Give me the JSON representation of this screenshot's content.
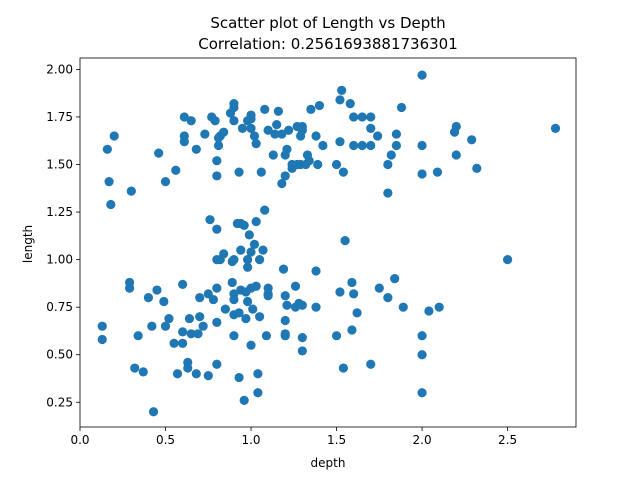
{
  "chart_data": {
    "type": "scatter",
    "title": "Scatter plot of Length vs Depth",
    "subtitle": "Correlation: 0.2561693881736301",
    "xlabel": "depth",
    "ylabel": "length",
    "xlim": [
      0.0,
      2.9
    ],
    "ylim": [
      0.12,
      2.06
    ],
    "xticks": [
      0.0,
      0.5,
      1.0,
      1.5,
      2.0,
      2.5
    ],
    "xtick_labels": [
      "0.0",
      "0.5",
      "1.0",
      "1.5",
      "2.0",
      "2.5"
    ],
    "yticks": [
      0.25,
      0.5,
      0.75,
      1.0,
      1.25,
      1.5,
      1.75,
      2.0
    ],
    "ytick_labels": [
      "0.25",
      "0.50",
      "0.75",
      "1.00",
      "1.25",
      "1.50",
      "1.75",
      "2.00"
    ],
    "grid": false,
    "marker_color": "#1f77b4",
    "points": [
      [
        0.13,
        0.65
      ],
      [
        0.13,
        0.58
      ],
      [
        0.16,
        1.58
      ],
      [
        0.17,
        1.41
      ],
      [
        0.18,
        1.29
      ],
      [
        0.2,
        1.65
      ],
      [
        0.29,
        0.88
      ],
      [
        0.29,
        0.85
      ],
      [
        0.3,
        1.36
      ],
      [
        0.32,
        0.43
      ],
      [
        0.34,
        0.6
      ],
      [
        0.37,
        0.41
      ],
      [
        0.4,
        0.8
      ],
      [
        0.42,
        0.65
      ],
      [
        0.43,
        0.2
      ],
      [
        0.45,
        0.84
      ],
      [
        0.46,
        1.56
      ],
      [
        0.49,
        0.78
      ],
      [
        0.5,
        1.41
      ],
      [
        0.5,
        0.65
      ],
      [
        0.52,
        0.69
      ],
      [
        0.55,
        0.56
      ],
      [
        0.56,
        1.47
      ],
      [
        0.57,
        0.4
      ],
      [
        0.6,
        0.87
      ],
      [
        0.6,
        0.62
      ],
      [
        0.6,
        0.56
      ],
      [
        0.61,
        1.75
      ],
      [
        0.61,
        1.65
      ],
      [
        0.61,
        1.62
      ],
      [
        0.63,
        0.46
      ],
      [
        0.63,
        0.43
      ],
      [
        0.64,
        0.69
      ],
      [
        0.65,
        1.73
      ],
      [
        0.65,
        0.61
      ],
      [
        0.68,
        1.58
      ],
      [
        0.68,
        0.4
      ],
      [
        0.69,
        0.61
      ],
      [
        0.7,
        0.7
      ],
      [
        0.7,
        0.8
      ],
      [
        0.72,
        0.65
      ],
      [
        0.73,
        1.66
      ],
      [
        0.75,
        0.39
      ],
      [
        0.75,
        0.82
      ],
      [
        0.76,
        1.21
      ],
      [
        0.77,
        1.75
      ],
      [
        0.78,
        0.79
      ],
      [
        0.79,
        1.73
      ],
      [
        0.8,
        0.85
      ],
      [
        0.8,
        0.45
      ],
      [
        0.8,
        0.67
      ],
      [
        0.8,
        1.52
      ],
      [
        0.8,
        1.44
      ],
      [
        0.8,
        1.16
      ],
      [
        0.8,
        1.0
      ],
      [
        0.81,
        1.64
      ],
      [
        0.81,
        1.6
      ],
      [
        0.82,
        1.0
      ],
      [
        0.82,
        1.65
      ],
      [
        0.84,
        1.03
      ],
      [
        0.84,
        1.67
      ],
      [
        0.85,
        0.74
      ],
      [
        0.88,
        1.77
      ],
      [
        0.89,
        0.99
      ],
      [
        0.89,
        0.88
      ],
      [
        0.9,
        0.82
      ],
      [
        0.9,
        0.79
      ],
      [
        0.9,
        1.0
      ],
      [
        0.9,
        1.73
      ],
      [
        0.9,
        1.8
      ],
      [
        0.9,
        1.82
      ],
      [
        0.9,
        0.6
      ],
      [
        0.9,
        0.71
      ],
      [
        0.92,
        1.19
      ],
      [
        0.93,
        0.72
      ],
      [
        0.93,
        0.38
      ],
      [
        0.93,
        1.46
      ],
      [
        0.94,
        1.05
      ],
      [
        0.94,
        1.19
      ],
      [
        0.94,
        0.84
      ],
      [
        0.95,
        1.69
      ],
      [
        0.96,
        1.18
      ],
      [
        0.96,
        0.26
      ],
      [
        0.97,
        0.83
      ],
      [
        0.97,
        0.69
      ],
      [
        0.98,
        0.78
      ],
      [
        0.98,
        1.73
      ],
      [
        0.98,
        1.0
      ],
      [
        0.98,
        0.96
      ],
      [
        0.99,
        1.13
      ],
      [
        1.0,
        0.55
      ],
      [
        1.0,
        1.04
      ],
      [
        1.0,
        1.74
      ],
      [
        1.0,
        1.76
      ],
      [
        1.0,
        1.69
      ],
      [
        1.0,
        0.85
      ],
      [
        1.01,
        0.74
      ],
      [
        1.02,
        1.65
      ],
      [
        1.02,
        1.08
      ],
      [
        1.03,
        0.86
      ],
      [
        1.03,
        1.2
      ],
      [
        1.03,
        1.61
      ],
      [
        1.04,
        0.4
      ],
      [
        1.04,
        0.3
      ],
      [
        1.05,
        0.7
      ],
      [
        1.05,
        1.0
      ],
      [
        1.06,
        1.46
      ],
      [
        1.07,
        1.05
      ],
      [
        1.08,
        1.26
      ],
      [
        1.08,
        1.79
      ],
      [
        1.09,
        0.6
      ],
      [
        1.1,
        1.68
      ],
      [
        1.1,
        0.85
      ],
      [
        1.1,
        0.81
      ],
      [
        1.1,
        0.82
      ],
      [
        1.13,
        1.55
      ],
      [
        1.14,
        1.66
      ],
      [
        1.15,
        1.71
      ],
      [
        1.16,
        1.78
      ],
      [
        1.18,
        1.66
      ],
      [
        1.18,
        1.4
      ],
      [
        1.19,
        0.95
      ],
      [
        1.2,
        0.81
      ],
      [
        1.2,
        0.68
      ],
      [
        1.2,
        0.6
      ],
      [
        1.2,
        0.61
      ],
      [
        1.2,
        1.44
      ],
      [
        1.2,
        1.55
      ],
      [
        1.21,
        1.58
      ],
      [
        1.21,
        0.76
      ],
      [
        1.22,
        1.68
      ],
      [
        1.24,
        1.48
      ],
      [
        1.24,
        1.5
      ],
      [
        1.26,
        0.75
      ],
      [
        1.26,
        0.86
      ],
      [
        1.27,
        1.7
      ],
      [
        1.27,
        1.5
      ],
      [
        1.28,
        0.77
      ],
      [
        1.29,
        1.5
      ],
      [
        1.29,
        1.65
      ],
      [
        1.3,
        0.59
      ],
      [
        1.3,
        0.76
      ],
      [
        1.3,
        0.52
      ],
      [
        1.3,
        1.68
      ],
      [
        1.3,
        1.7
      ],
      [
        1.32,
        1.5
      ],
      [
        1.33,
        1.55
      ],
      [
        1.34,
        1.52
      ],
      [
        1.35,
        1.79
      ],
      [
        1.38,
        0.94
      ],
      [
        1.38,
        1.65
      ],
      [
        1.38,
        0.75
      ],
      [
        1.39,
        1.5
      ],
      [
        1.4,
        1.81
      ],
      [
        1.42,
        1.6
      ],
      [
        1.5,
        0.6
      ],
      [
        1.5,
        1.5
      ],
      [
        1.52,
        1.62
      ],
      [
        1.52,
        1.84
      ],
      [
        1.52,
        0.83
      ],
      [
        1.53,
        1.89
      ],
      [
        1.54,
        1.46
      ],
      [
        1.54,
        0.43
      ],
      [
        1.55,
        1.1
      ],
      [
        1.58,
        1.82
      ],
      [
        1.59,
        0.88
      ],
      [
        1.59,
        0.63
      ],
      [
        1.6,
        0.82
      ],
      [
        1.6,
        1.75
      ],
      [
        1.6,
        1.6
      ],
      [
        1.62,
        0.72
      ],
      [
        1.65,
        1.75
      ],
      [
        1.65,
        1.6
      ],
      [
        1.7,
        1.6
      ],
      [
        1.7,
        1.75
      ],
      [
        1.7,
        1.69
      ],
      [
        1.7,
        0.45
      ],
      [
        1.74,
        1.65
      ],
      [
        1.75,
        0.85
      ],
      [
        1.8,
        1.5
      ],
      [
        1.8,
        0.8
      ],
      [
        1.8,
        1.35
      ],
      [
        1.82,
        1.55
      ],
      [
        1.84,
        0.9
      ],
      [
        1.85,
        1.6
      ],
      [
        1.85,
        1.66
      ],
      [
        1.88,
        1.8
      ],
      [
        1.89,
        0.75
      ],
      [
        2.0,
        1.97
      ],
      [
        2.0,
        1.6
      ],
      [
        2.0,
        1.45
      ],
      [
        2.0,
        0.6
      ],
      [
        2.0,
        0.5
      ],
      [
        2.0,
        0.3
      ],
      [
        2.04,
        0.73
      ],
      [
        2.09,
        1.46
      ],
      [
        2.1,
        0.75
      ],
      [
        2.19,
        1.67
      ],
      [
        2.2,
        1.7
      ],
      [
        2.2,
        1.55
      ],
      [
        2.29,
        1.63
      ],
      [
        2.32,
        1.48
      ],
      [
        2.5,
        1.0
      ],
      [
        2.78,
        1.69
      ]
    ]
  }
}
